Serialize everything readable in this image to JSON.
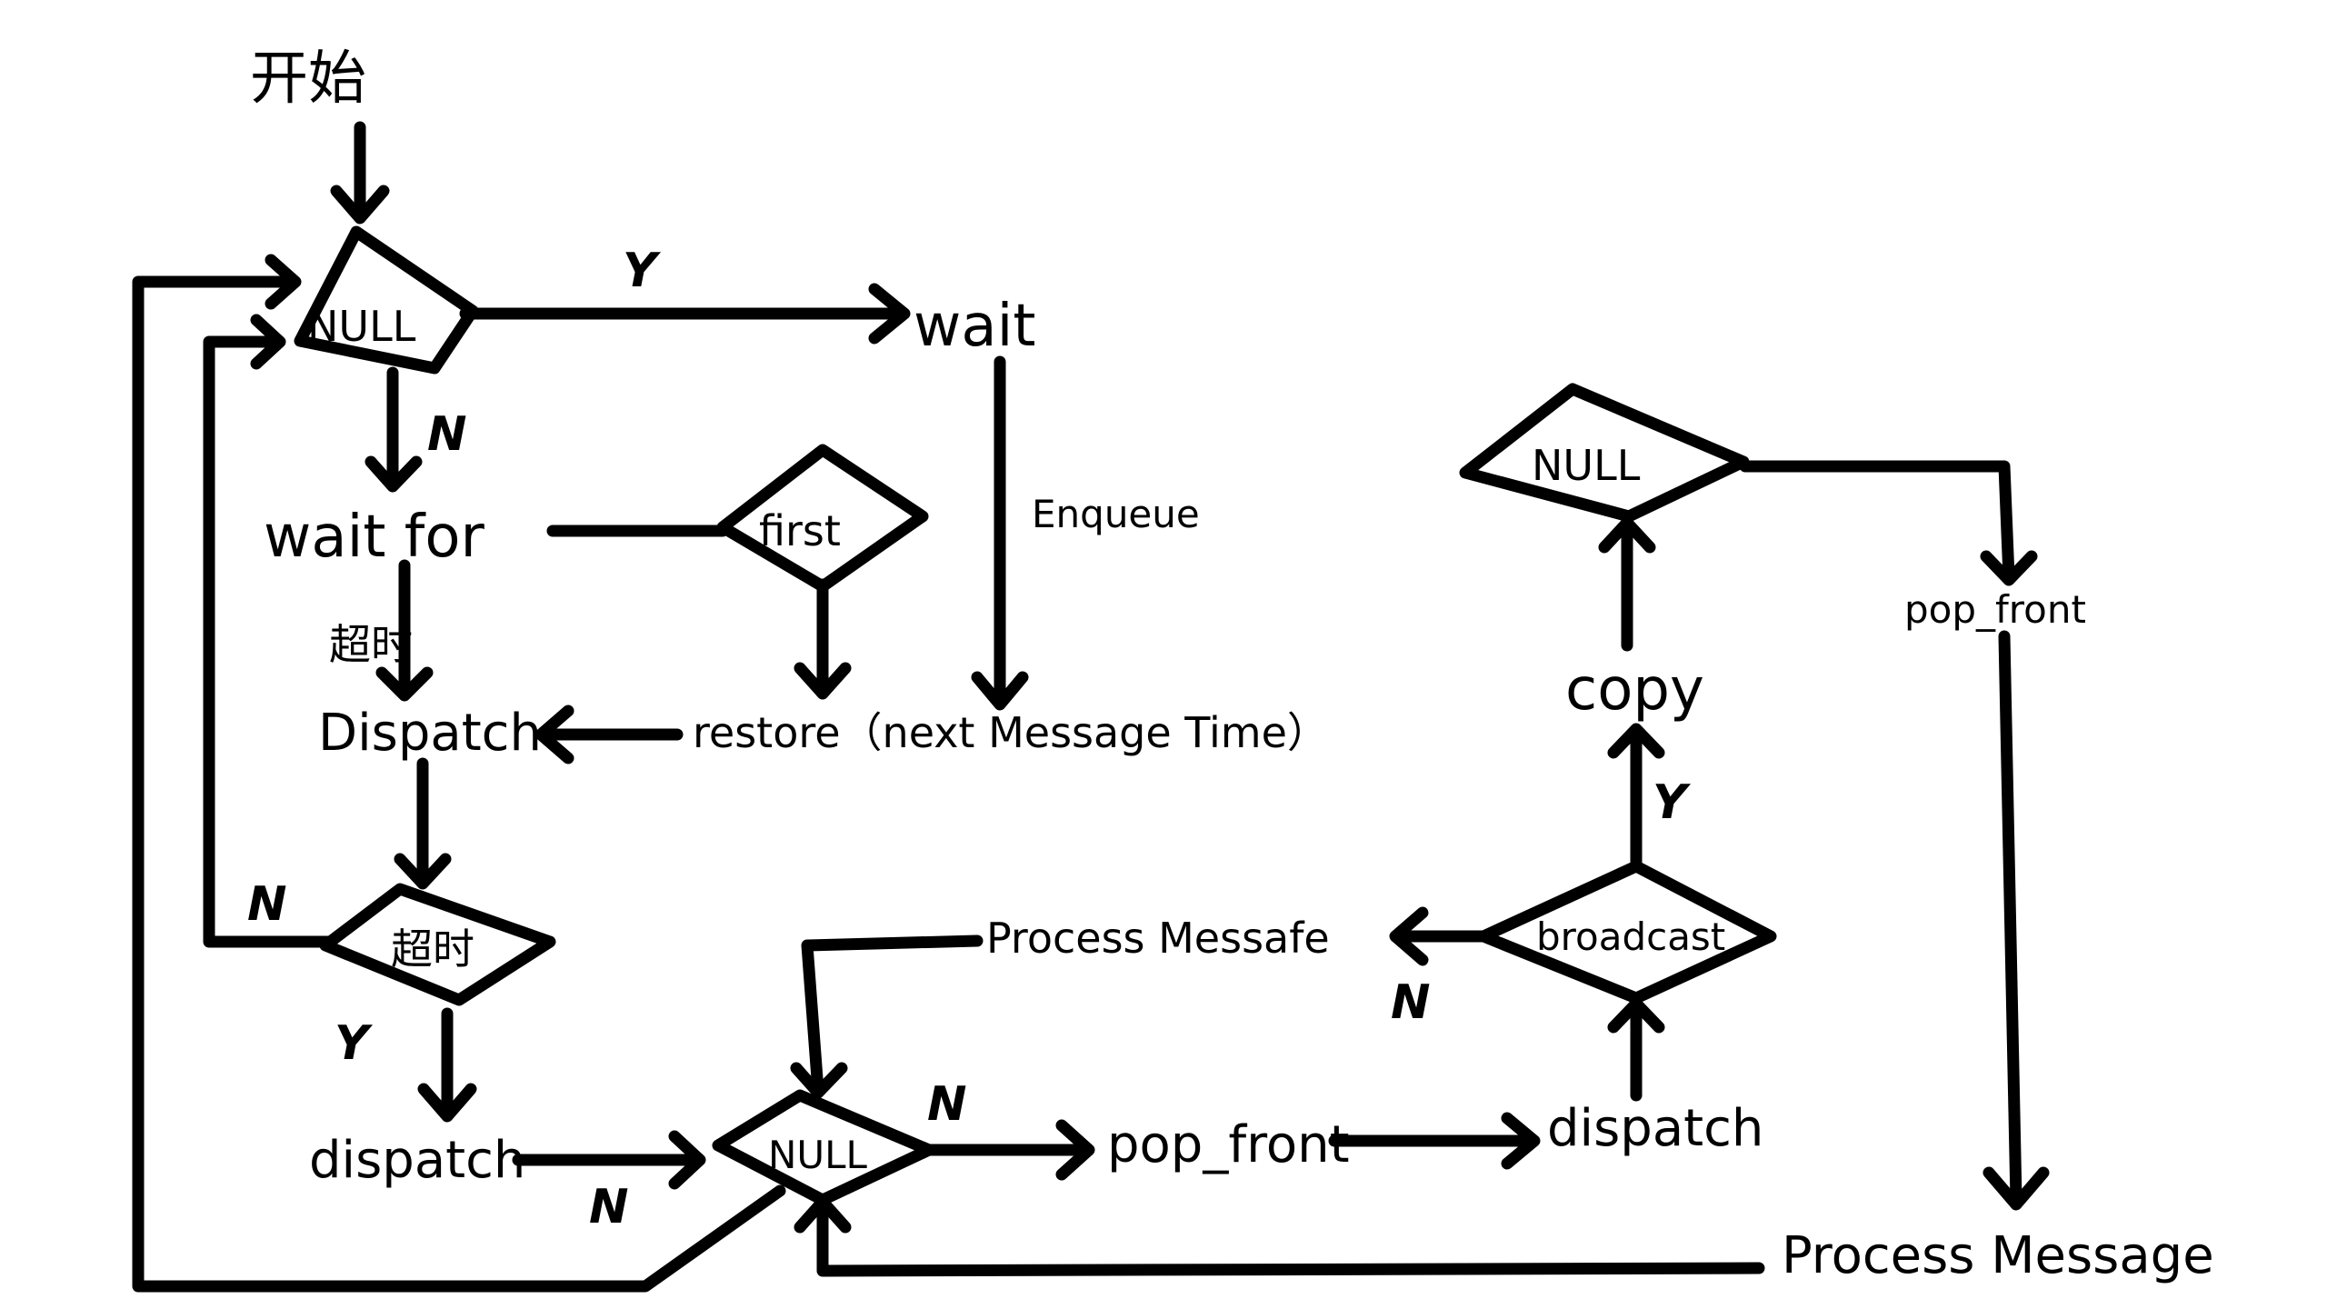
{
  "nodes": {
    "start": "开始",
    "null_top": "NULL",
    "wait": "wait",
    "wait_for": "wait for",
    "first": "first",
    "timeout_label": "超时",
    "dispatch_upper": "Dispatch",
    "restore": "restore（next Message Time）",
    "enqueue": "Enqueue",
    "timeout_diamond": "超时",
    "dispatch_left": "dispatch",
    "null_bottom": "NULL",
    "pop_front_mid": "pop_front",
    "dispatch_right": "dispatch",
    "broadcast": "broadcast",
    "process_messafe": "Process  Messafe",
    "copy": "copy",
    "null_right": "NULL",
    "pop_front_right": "pop_front",
    "process_message": "Process Message"
  },
  "edge_labels": {
    "null_top_yes": "Y",
    "null_top_no": "N",
    "timeout_no": "N",
    "timeout_yes": "Y",
    "null_bottom_no_left": "N",
    "null_bottom_no_right": "N",
    "broadcast_no": "N",
    "broadcast_yes": "Y"
  }
}
